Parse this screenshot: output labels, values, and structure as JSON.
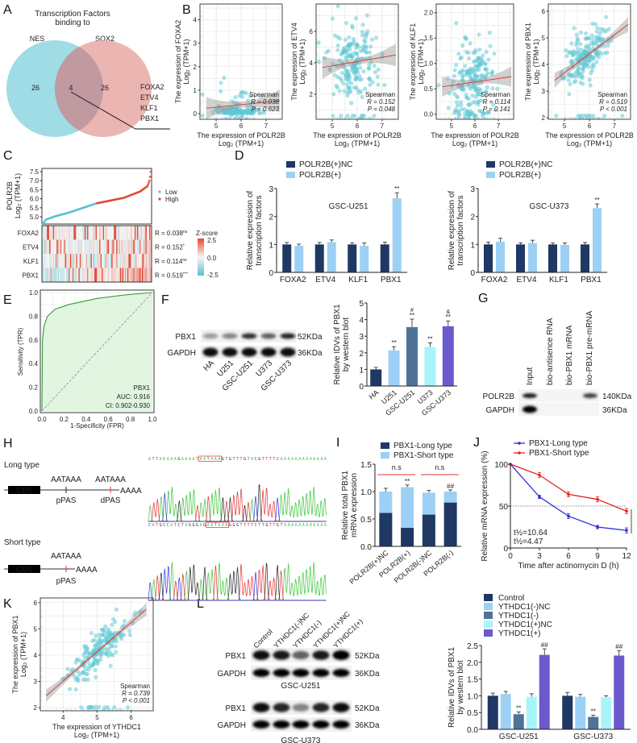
{
  "panel_labels": {
    "A": "A",
    "B": "B",
    "C": "C",
    "D": "D",
    "E": "E",
    "F": "F",
    "G": "G",
    "H": "H",
    "I": "I",
    "J": "J",
    "K": "K",
    "L": "L"
  },
  "venn": {
    "title_line1": "Transcription Factors",
    "title_line2": "binding to",
    "title_color": "#e040e0",
    "sets": [
      {
        "name": "NES",
        "unique": "26",
        "color": "#9fdce6",
        "label_color": "#5bbfd0"
      },
      {
        "name": "SOX2",
        "unique": "26",
        "color": "#e7a8a3",
        "label_color": "#d9776f"
      }
    ],
    "intersection": "4",
    "intersection_genes": [
      "FOXA2",
      "ETV4",
      "KLF1",
      "PBX1"
    ]
  },
  "blots": {
    "F": {
      "rows": [
        {
          "protein": "PBX1",
          "size": "52KDa"
        },
        {
          "protein": "GAPDH",
          "size": "36KDa"
        }
      ],
      "lanes": [
        "HA",
        "U251",
        "GSC-U251",
        "U373",
        "GSC-U373"
      ]
    },
    "G": {
      "lanes": [
        "Input",
        "bio-antisence RNA",
        "bio-PBX1 mRNA",
        "bio-PBX1 pre-mRNA"
      ],
      "rows": [
        {
          "protein": "POLR2B",
          "size": "140KDa"
        },
        {
          "protein": "GAPDH",
          "size": "36KDa"
        }
      ]
    },
    "L": {
      "lanes": [
        "Control",
        "YTHDC1(-)NC",
        "YTHDC1(-)",
        "YTHDC1(+)NC",
        "YTHDC1(+)"
      ],
      "blocks": [
        {
          "cell_line": "GSC-U251",
          "rows": [
            {
              "protein": "PBX1",
              "size": "52KDa"
            },
            {
              "protein": "GAPDH",
              "size": "36KDa"
            }
          ]
        },
        {
          "cell_line": "GSC-U373",
          "rows": [
            {
              "protein": "PBX1",
              "size": "52KDa"
            },
            {
              "protein": "GAPDH",
              "size": "36KDa"
            }
          ]
        }
      ]
    }
  },
  "H": {
    "long": {
      "label": "Long type",
      "cds": "CDS",
      "proximal_signal": "AATAAA",
      "proximal_site": "pPAS",
      "distal_signal": "AATAAA",
      "distal_site": "dPAS",
      "polyA": "AAAA",
      "sequence": "ATTACAAAGAAAATAATAAAGTGTTTGTACGTTTTCAAAAAAAAAAAAA"
    },
    "short": {
      "label": "Short type",
      "cds": "CDS",
      "signal": "AATAAA",
      "site": "pPAS",
      "polyA": "AAAA",
      "sequence": "CATGCCATCTAGGGAGAATAAAGGGTTTTCTTGTTGTAAAAAAAAAAAA"
    },
    "highlight_color": "#e03030",
    "base_colors": {
      "A": "#3cc43c",
      "T": "#e03030",
      "G": "#222222",
      "C": "#3030e0"
    }
  },
  "chart_data": [
    {
      "id": "B-FOXA2",
      "type": "scatter",
      "ylabel": "The expression of FOXA2",
      "ylabel_unit": "Log₂ (TPM+1)",
      "xlabel": "The expression of POLR2B",
      "xlabel_unit": "Log₂ (TPM+1)",
      "xlim": [
        4.35,
        7.65
      ],
      "ylim": [
        -0.24,
        4.67
      ],
      "xticks": [
        "5",
        "6",
        "7"
      ],
      "yticks": [
        "0",
        "1",
        "2",
        "3",
        "4"
      ],
      "fit_line": {
        "x": [
          4.6,
          7.55
        ],
        "y": [
          0.23,
          0.55
        ]
      },
      "stats": {
        "method": "Spearman",
        "r": "R = 0.038",
        "p": "P = 0.623"
      },
      "point_color": "#5fc8d4",
      "line_color": "#d43f3a",
      "grid": true
    },
    {
      "id": "B-ETV4",
      "type": "scatter",
      "ylabel": "The expression of ETV4",
      "ylabel_unit": "Log₂ (TPM+1)",
      "xlabel": "The expression of POLR2B",
      "xlabel_unit": "Log₂ (TPM+1)",
      "xlim": [
        4.35,
        7.65
      ],
      "ylim": [
        0.41,
        7.74
      ],
      "xticks": [
        "5",
        "6",
        "7"
      ],
      "yticks": [
        "2",
        "4",
        "6"
      ],
      "fit_line": {
        "x": [
          4.6,
          7.55
        ],
        "y": [
          3.7,
          4.5
        ]
      },
      "stats": {
        "method": "Spearman",
        "r": "R = 0.152",
        "p": "P = 0.048"
      },
      "point_color": "#5fc8d4",
      "line_color": "#d43f3a",
      "grid": true
    },
    {
      "id": "B-KLF1",
      "type": "scatter",
      "ylabel": "The expression of KLF1",
      "ylabel_unit": "Log₂ (TPM+1)",
      "xlabel": "The expression of POLR2B",
      "xlabel_unit": "Log₂ (TPM+1)",
      "xlim": [
        4.35,
        7.65
      ],
      "ylim": [
        -0.1,
        2.17
      ],
      "xticks": [
        "5",
        "6",
        "7"
      ],
      "yticks": [
        "0.0",
        "0.5",
        "1.0",
        "1.5",
        "2.0"
      ],
      "fit_line": {
        "x": [
          4.6,
          7.55
        ],
        "y": [
          0.54,
          0.74
        ]
      },
      "stats": {
        "method": "Spearman",
        "r": "R = 0.114",
        "p": "P = 0.141"
      },
      "point_color": "#5fc8d4",
      "line_color": "#d43f3a",
      "grid": true
    },
    {
      "id": "B-PBX1",
      "type": "scatter",
      "ylabel": "The expression of PBX1",
      "ylabel_unit": "Log₂ (TPM+1)",
      "xlabel": "The expression of POLR2B",
      "xlabel_unit": "Log₂ (TPM+1)",
      "xlim": [
        4.35,
        7.65
      ],
      "ylim": [
        1.94,
        6.27
      ],
      "xticks": [
        "5",
        "6",
        "7"
      ],
      "yticks": [
        "2",
        "3",
        "4",
        "5",
        "6"
      ],
      "fit_line": {
        "x": [
          4.6,
          7.55
        ],
        "y": [
          3.4,
          5.5
        ]
      },
      "stats": {
        "method": "Spearman",
        "r": "R = 0.519",
        "p": "P < 0.001"
      },
      "point_color": "#5fc8d4",
      "line_color": "#d43f3a",
      "grid": true
    },
    {
      "id": "C",
      "type": "heatmap",
      "ylabel": "POLR2B",
      "ylabel_unit": "Log₂ (TPM+1)",
      "ylim": [
        4.6,
        7.68
      ],
      "yticks": [
        "5.0",
        "5.5",
        "6.0",
        "6.5",
        "7.0",
        "7.5"
      ],
      "sorted_expression": {
        "quantile": [
          0,
          0.03,
          0.1,
          0.25,
          0.5,
          0.75,
          0.9,
          0.97,
          0.99,
          1.0
        ],
        "value": [
          4.6,
          4.85,
          5.0,
          5.25,
          5.75,
          6.05,
          6.4,
          6.7,
          7.05,
          7.5
        ]
      },
      "groups": [
        {
          "name": "Low",
          "color": "#5bc0d0"
        },
        {
          "name": "High",
          "color": "#e34a33"
        }
      ],
      "heatmap": {
        "rows": [
          {
            "gene": "FOXA2",
            "r": "R = 0.038",
            "sig": "ns"
          },
          {
            "gene": "ETV4",
            "r": "R = 0.152",
            "sig": "*"
          },
          {
            "gene": "KLF1",
            "r": "R = 0.114",
            "sig": "ns"
          },
          {
            "gene": "PBX1",
            "r": "R = 0.519",
            "sig": "***"
          }
        ],
        "colorbar": {
          "title": "Z-score",
          "ticks": [
            "2.5",
            "0.0",
            "-2.5"
          ],
          "colors": [
            "#e34a33",
            "#f5f5f5",
            "#5bc0d0"
          ]
        }
      }
    },
    {
      "id": "D-U251",
      "type": "bar",
      "title": "GSC-U251",
      "ylabel": "Relative expression of",
      "ylabel2": "transcription factors",
      "ylim": [
        0,
        3
      ],
      "yticks": [
        "0",
        "1",
        "2",
        "3"
      ],
      "categories": [
        "FOXA2",
        "ETV4",
        "KLF1",
        "PBX1"
      ],
      "series": [
        {
          "name": "POLR2B(+)NC",
          "color": "#1f3864",
          "values": [
            1,
            1,
            1,
            1
          ],
          "errors": [
            0.07,
            0.07,
            0.06,
            0.08
          ],
          "sig": [
            "",
            "",
            "",
            ""
          ]
        },
        {
          "name": "POLR2B(+)",
          "color": "#9dd0f5",
          "values": [
            0.95,
            1.08,
            0.95,
            2.65
          ],
          "errors": [
            0.06,
            0.08,
            0.1,
            0.2
          ],
          "sig": [
            "",
            "",
            "",
            "**"
          ]
        }
      ]
    },
    {
      "id": "D-U373",
      "type": "bar",
      "title": "GSC-U373",
      "ylabel": "Relative expression of",
      "ylabel2": "transcription factors",
      "ylim": [
        0,
        3
      ],
      "yticks": [
        "0",
        "1",
        "2",
        "3"
      ],
      "categories": [
        "FOXA2",
        "ETV4",
        "KLF1",
        "PBX1"
      ],
      "series": [
        {
          "name": "POLR2B(+)NC",
          "color": "#1f3864",
          "values": [
            1,
            1,
            1,
            1
          ],
          "errors": [
            0.08,
            0.06,
            0.05,
            0.07
          ],
          "sig": [
            "",
            "",
            "",
            ""
          ]
        },
        {
          "name": "POLR2B(+)",
          "color": "#9dd0f5",
          "values": [
            1.1,
            1.05,
            0.98,
            2.3
          ],
          "errors": [
            0.12,
            0.1,
            0.07,
            0.15
          ],
          "sig": [
            "",
            "",
            "",
            "**"
          ]
        }
      ]
    },
    {
      "id": "E",
      "type": "line",
      "title": "PBX1",
      "auc": "AUC: 0.916",
      "ci": "CI: 0.902-0.930",
      "xlabel": "1-Specificity (FPR)",
      "ylabel": "Sensitivity (TPR)",
      "xlim": [
        0,
        1
      ],
      "ylim": [
        0,
        1
      ],
      "xticks": [
        "0.0",
        "0.2",
        "0.4",
        "0.6",
        "0.8",
        "1.0"
      ],
      "yticks": [
        "0.0",
        "0.2",
        "0.4",
        "0.6",
        "0.8",
        "1.0"
      ],
      "roc": {
        "fpr": [
          0,
          0.005,
          0.02,
          0.05,
          0.12,
          0.25,
          0.5,
          0.75,
          1.0
        ],
        "tpr": [
          0,
          0.6,
          0.72,
          0.8,
          0.86,
          0.9,
          0.95,
          0.98,
          1.0
        ]
      },
      "curve_color": "#3a9a3a",
      "fill_color": "#dcf3dc",
      "grid": true
    },
    {
      "id": "F",
      "type": "bar",
      "ylabel": "Relative IDVs of PBX1",
      "ylabel2": "by western blot",
      "ylim": [
        0,
        5
      ],
      "yticks": [
        "0",
        "1",
        "2",
        "3",
        "4",
        "5"
      ],
      "categories": [
        "HA",
        "U251",
        "GSC-U251",
        "U373",
        "GSC-U373"
      ],
      "series": [
        {
          "values": [
            1.0,
            2.15,
            3.55,
            2.35,
            3.6
          ],
          "errors": [
            0.12,
            0.22,
            0.48,
            0.25,
            0.32
          ],
          "colors": [
            "#1f3864",
            "#9dd0f5",
            "#4f7396",
            "#a8f4fb",
            "#6a5acd"
          ],
          "sig": [
            "",
            "**",
            "**",
            "**",
            "**"
          ],
          "sig2": [
            "",
            "",
            "#",
            "",
            "&"
          ]
        }
      ]
    },
    {
      "id": "I",
      "type": "bar",
      "stacked": true,
      "ylabel": "Relative total PBX1",
      "ylabel2": "mRNA expression",
      "ylim": [
        0,
        1.5
      ],
      "yticks": [
        "0.0",
        "0.5",
        "1.0",
        "1.5"
      ],
      "categories": [
        "POLR2B(+)NC",
        "POLR2B(+)",
        "POLR2B(-)NC",
        "POLR2B(-)"
      ],
      "series": [
        {
          "name": "PBX1-Long type",
          "color": "#1f3864",
          "values": [
            0.61,
            0.34,
            0.58,
            0.8
          ],
          "errors": [
            0.09,
            0.05,
            0.09,
            0.07
          ],
          "sig": [
            "",
            "**",
            "",
            "##"
          ]
        },
        {
          "name": "PBX1-Short type",
          "color": "#9dd0f5",
          "values": [
            0.39,
            0.74,
            0.4,
            0.2
          ],
          "errors": [
            0.06,
            0.04,
            0.04,
            0.03
          ],
          "sig": [
            "",
            "**",
            "",
            "##"
          ]
        }
      ],
      "comparisons": [
        {
          "groups": [
            0,
            1
          ],
          "label": "n.s"
        },
        {
          "groups": [
            2,
            3
          ],
          "label": "n.s"
        }
      ],
      "comparison_color": "#e03030"
    },
    {
      "id": "J",
      "type": "line",
      "xlabel": "Time after actinomycin D (h)",
      "ylabel": "Relative mRNA expression (%)",
      "xlim": [
        0,
        12
      ],
      "ylim": [
        0,
        100
      ],
      "xticks": [
        "0",
        "3",
        "6",
        "9",
        "12"
      ],
      "yticks": [
        "0",
        "50",
        "100"
      ],
      "x": [
        0,
        3,
        6,
        9,
        12
      ],
      "reference_line": 50,
      "series": [
        {
          "name": "PBX1-Long type",
          "color": "#2e2ee0",
          "values": [
            100,
            61,
            38,
            25,
            21
          ],
          "errors": [
            0,
            2,
            3,
            2,
            3
          ],
          "half_life": "t½=4.47"
        },
        {
          "name": "PBX1-Short type",
          "color": "#e82020",
          "values": [
            100,
            87,
            64,
            58,
            44
          ],
          "errors": [
            0,
            3,
            3,
            3,
            3
          ],
          "half_life": "t½=10.64"
        }
      ],
      "sig": "**"
    },
    {
      "id": "K",
      "type": "scatter",
      "ylabel": "The expression of PBX1",
      "ylabel_unit": "Log₂ (TPM+1)",
      "xlabel": "The expression of YTHDC1",
      "xlabel_unit": "Log₂ (TPM+1)",
      "xlim": [
        3.33,
        6.65
      ],
      "ylim": [
        1.88,
        6.18
      ],
      "xticks": [
        "4",
        "5",
        "6"
      ],
      "yticks": [
        "2",
        "3",
        "4",
        "5",
        "6"
      ],
      "fit_line": {
        "x": [
          3.5,
          6.45
        ],
        "y": [
          2.45,
          5.75
        ]
      },
      "stats": {
        "method": "Spearman",
        "r": "R = 0.739",
        "p": "P < 0.001"
      },
      "point_color": "#5fc8d4",
      "line_color": "#d43f3a",
      "grid": true
    },
    {
      "id": "L",
      "type": "bar",
      "ylabel": "Relative IDVs of PBX1",
      "ylabel2": "by western blot",
      "ylim": [
        0,
        2.5
      ],
      "yticks": [
        "0.0",
        "0.5",
        "1.0",
        "1.5",
        "2.0",
        "2.5"
      ],
      "categories": [
        "GSC-U251",
        "GSC-U373"
      ],
      "series": [
        {
          "name": "Control",
          "color": "#1f3864",
          "values": [
            1.0,
            1.0
          ],
          "errors": [
            0.08,
            0.1
          ],
          "sig": [
            "",
            ""
          ]
        },
        {
          "name": "YTHDC1(-)NC",
          "color": "#9dd0f5",
          "values": [
            1.05,
            0.97
          ],
          "errors": [
            0.08,
            0.07
          ],
          "sig": [
            "",
            ""
          ]
        },
        {
          "name": "YTHDC1(-)",
          "color": "#4f7396",
          "values": [
            0.45,
            0.37
          ],
          "errors": [
            0.07,
            0.05
          ],
          "sig": [
            "**",
            "**"
          ]
        },
        {
          "name": "YTHDC1(+)NC",
          "color": "#a8f4fb",
          "values": [
            0.97,
            0.96
          ],
          "errors": [
            0.09,
            0.04
          ],
          "sig": [
            "",
            ""
          ]
        },
        {
          "name": "YTHDC1(+)",
          "color": "#6a5acd",
          "values": [
            2.22,
            2.2
          ],
          "errors": [
            0.18,
            0.15
          ],
          "sig": [
            "##",
            "##"
          ]
        }
      ]
    }
  ]
}
